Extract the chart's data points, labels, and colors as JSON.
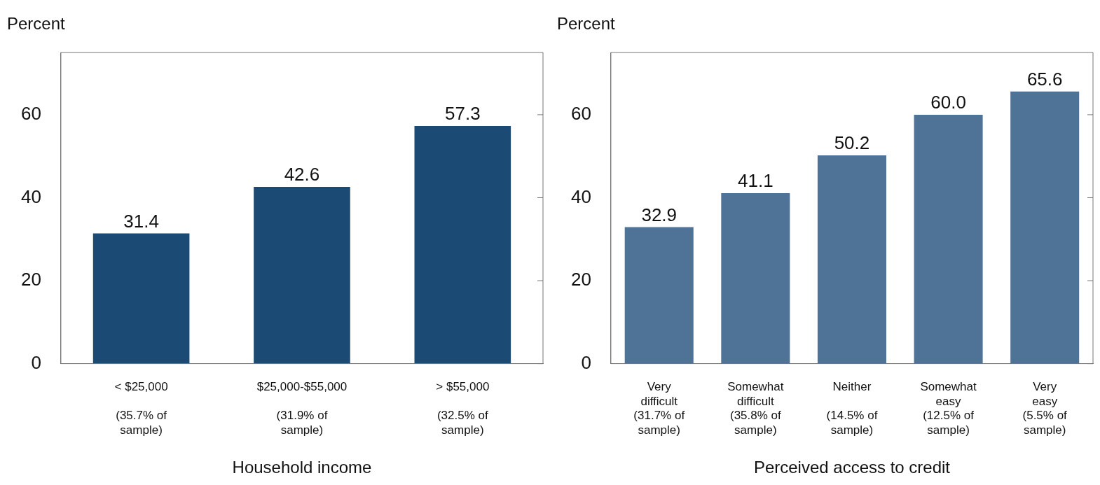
{
  "chart_data": [
    {
      "type": "bar",
      "ylabel": "Percent",
      "xlabel": "Household income",
      "categories": [
        "< $25,000\n \n(35.7% of\nsample)",
        "$25,000-$55,000\n \n(31.9% of\nsample)",
        "> $55,000\n \n(32.5% of\nsample)"
      ],
      "values": [
        31.4,
        42.6,
        57.3
      ],
      "value_labels": [
        "31.4",
        "42.6",
        "57.3"
      ],
      "color": "#1b4a74",
      "ylim": [
        0,
        75
      ],
      "yticks": [
        0,
        20,
        40,
        60
      ],
      "grid": false,
      "legend": false
    },
    {
      "type": "bar",
      "ylabel": "Percent",
      "xlabel": "Perceived access to credit",
      "categories": [
        "Very\ndifficult\n(31.7% of\nsample)",
        "Somewhat\ndifficult\n(35.8% of\nsample)",
        "Neither\n \n(14.5% of\nsample)",
        "Somewhat\neasy\n(12.5% of\nsample)",
        "Very\neasy\n(5.5% of\nsample)"
      ],
      "values": [
        32.9,
        41.1,
        50.2,
        60.0,
        65.6
      ],
      "value_labels": [
        "32.9",
        "41.1",
        "50.2",
        "60.0",
        "65.6"
      ],
      "color": "#4f7297",
      "ylim": [
        0,
        75
      ],
      "yticks": [
        0,
        20,
        40,
        60
      ],
      "grid": false,
      "legend": false
    }
  ]
}
